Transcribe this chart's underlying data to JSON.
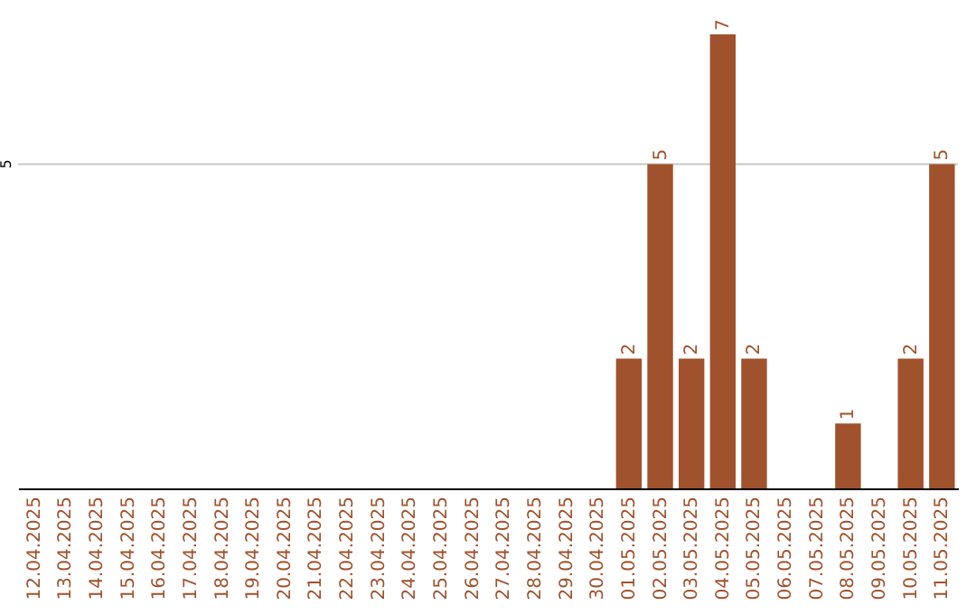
{
  "chart_data": {
    "type": "bar",
    "categories": [
      "12.04.2025",
      "13.04.2025",
      "14.04.2025",
      "15.04.2025",
      "16.04.2025",
      "17.04.2025",
      "18.04.2025",
      "19.04.2025",
      "20.04.2025",
      "21.04.2025",
      "22.04.2025",
      "23.04.2025",
      "24.04.2025",
      "25.04.2025",
      "26.04.2025",
      "27.04.2025",
      "28.04.2025",
      "29.04.2025",
      "30.04.2025",
      "01.05.2025",
      "02.05.2025",
      "03.05.2025",
      "04.05.2025",
      "05.05.2025",
      "06.05.2025",
      "07.05.2025",
      "08.05.2025",
      "09.05.2025",
      "10.05.2025",
      "11.05.2025"
    ],
    "values": [
      null,
      null,
      null,
      null,
      null,
      null,
      null,
      null,
      null,
      null,
      null,
      null,
      null,
      null,
      null,
      null,
      null,
      null,
      null,
      2,
      5,
      2,
      7,
      2,
      null,
      null,
      1,
      null,
      2,
      5
    ],
    "data_labels": true,
    "color": "#a0522d",
    "ref_lines": [
      {
        "axis": "y",
        "value": 5,
        "label": "5",
        "color": "#c8c8c8"
      }
    ]
  }
}
